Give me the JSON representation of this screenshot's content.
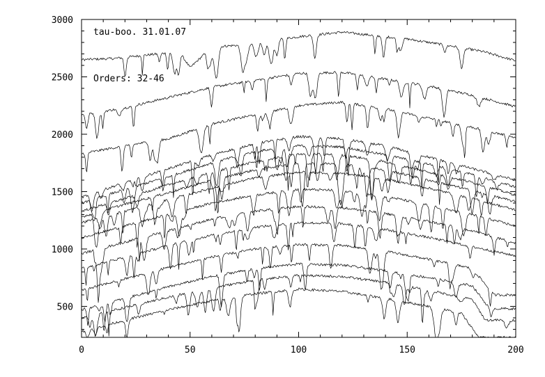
{
  "chart_data": {
    "type": "line",
    "title": "",
    "xlabel": "",
    "ylabel": "",
    "xlim": [
      0,
      200
    ],
    "ylim": [
      230,
      3000
    ],
    "x_ticks": [
      0,
      50,
      100,
      150,
      200
    ],
    "y_ticks": [
      500,
      1000,
      1500,
      2000,
      2500,
      3000
    ],
    "grid": false,
    "annotations": [
      "tau-boo. 31.01.07",
      "Orders: 32-46"
    ],
    "series": [
      {
        "x": [
          0,
          15,
          30,
          45,
          50,
          60,
          75,
          100,
          120,
          150,
          170,
          185,
          200
        ],
        "values": [
          2650,
          2660,
          2690,
          2720,
          2580,
          2760,
          2780,
          2850,
          2890,
          2830,
          2770,
          2720,
          2640
        ]
      },
      {
        "x": [
          0,
          20,
          40,
          60,
          80,
          100,
          120,
          140,
          160,
          180,
          200
        ],
        "values": [
          2170,
          2230,
          2320,
          2410,
          2470,
          2530,
          2540,
          2480,
          2420,
          2340,
          2240
        ]
      },
      {
        "x": [
          0,
          20,
          40,
          60,
          80,
          100,
          120,
          140,
          160,
          180,
          200
        ],
        "values": [
          1830,
          1900,
          1960,
          2090,
          2170,
          2250,
          2280,
          2220,
          2140,
          2060,
          1970
        ]
      },
      {
        "x": [
          0,
          20,
          40,
          60,
          80,
          100,
          120,
          140,
          160,
          180,
          200
        ],
        "values": [
          1450,
          1580,
          1700,
          1820,
          1920,
          1980,
          1960,
          1900,
          1800,
          1700,
          1600
        ]
      },
      {
        "x": [
          0,
          20,
          40,
          60,
          80,
          100,
          120,
          140,
          160,
          180,
          200
        ],
        "values": [
          1400,
          1520,
          1630,
          1750,
          1850,
          1900,
          1890,
          1820,
          1740,
          1650,
          1540
        ]
      },
      {
        "x": [
          0,
          20,
          40,
          60,
          80,
          100,
          120,
          140,
          160,
          180,
          200
        ],
        "values": [
          1330,
          1440,
          1560,
          1670,
          1760,
          1830,
          1820,
          1760,
          1670,
          1580,
          1470
        ]
      },
      {
        "x": [
          0,
          20,
          40,
          60,
          80,
          100,
          120,
          140,
          160,
          180,
          200
        ],
        "values": [
          1280,
          1390,
          1490,
          1600,
          1690,
          1750,
          1740,
          1690,
          1600,
          1510,
          1410
        ]
      },
      {
        "x": [
          0,
          20,
          40,
          60,
          80,
          100,
          120,
          140,
          160,
          180,
          200
        ],
        "values": [
          1230,
          1330,
          1430,
          1530,
          1620,
          1670,
          1660,
          1610,
          1530,
          1440,
          1340
        ]
      },
      {
        "x": [
          0,
          20,
          40,
          60,
          80,
          100,
          120,
          140,
          160,
          180,
          200
        ],
        "values": [
          1100,
          1200,
          1300,
          1400,
          1470,
          1520,
          1510,
          1460,
          1380,
          1300,
          1200
        ]
      },
      {
        "x": [
          0,
          20,
          40,
          60,
          80,
          100,
          120,
          140,
          160,
          180,
          200
        ],
        "values": [
          960,
          1060,
          1160,
          1260,
          1330,
          1370,
          1360,
          1310,
          1240,
          1160,
          1050
        ]
      },
      {
        "x": [
          0,
          20,
          40,
          60,
          80,
          100,
          120,
          140,
          160,
          180,
          200
        ],
        "values": [
          830,
          930,
          1030,
          1120,
          1190,
          1230,
          1220,
          1170,
          1100,
          1020,
          940
        ]
      },
      {
        "x": [
          0,
          20,
          40,
          60,
          80,
          100,
          120,
          140,
          160,
          180,
          190,
          200
        ],
        "values": [
          640,
          740,
          840,
          930,
          1000,
          1040,
          1030,
          980,
          910,
          830,
          600,
          600
        ]
      },
      {
        "x": [
          0,
          20,
          40,
          60,
          80,
          100,
          120,
          140,
          160,
          180,
          188,
          200
        ],
        "values": [
          470,
          570,
          670,
          760,
          830,
          870,
          860,
          810,
          750,
          680,
          480,
          480
        ]
      },
      {
        "x": [
          0,
          20,
          40,
          60,
          80,
          100,
          120,
          140,
          160,
          180,
          186,
          200
        ],
        "values": [
          400,
          490,
          580,
          660,
          730,
          770,
          760,
          710,
          640,
          560,
          380,
          380
        ]
      },
      {
        "x": [
          0,
          20,
          40,
          60,
          80,
          100,
          120,
          140,
          160,
          175,
          183,
          200
        ],
        "values": [
          280,
          380,
          470,
          550,
          610,
          650,
          630,
          570,
          500,
          440,
          230,
          230
        ]
      }
    ]
  }
}
